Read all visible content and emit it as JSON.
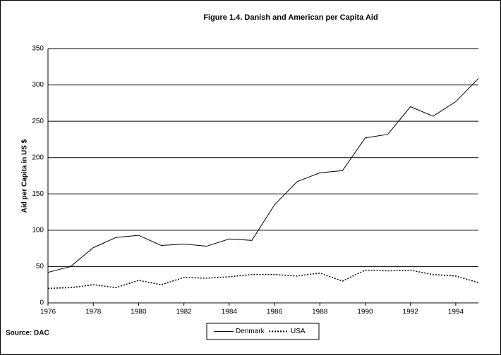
{
  "chart_data": {
    "type": "line",
    "title": "Figure 1.4.  Danish and American per Capita Aid",
    "y_label": "Aid per Capita in US $",
    "source": "Source: DAC",
    "x": [
      1976,
      1977,
      1978,
      1979,
      1980,
      1981,
      1982,
      1983,
      1984,
      1985,
      1986,
      1987,
      1988,
      1989,
      1990,
      1991,
      1992,
      1993,
      1994,
      1995
    ],
    "series": [
      {
        "name": "Denmark",
        "color": "#000000",
        "style": "solid",
        "values": [
          42,
          50,
          76,
          90,
          93,
          79,
          81,
          78,
          88,
          86,
          135,
          167,
          179,
          182,
          227,
          232,
          270,
          257,
          277,
          309
        ]
      },
      {
        "name": "USA",
        "color": "#000000",
        "style": "dotted",
        "values": [
          20,
          21,
          25,
          21,
          31,
          25,
          35,
          34,
          36,
          39,
          39,
          37,
          41,
          30,
          45,
          44,
          45,
          39,
          37,
          28
        ]
      }
    ],
    "xlim": [
      1976,
      1995
    ],
    "xticks": [
      1976,
      1978,
      1980,
      1982,
      1984,
      1986,
      1988,
      1990,
      1992,
      1994
    ],
    "ylim": [
      0,
      350
    ],
    "yticks": [
      0,
      50,
      100,
      150,
      200,
      250,
      300,
      350
    ],
    "grid": true,
    "legend": "bottom"
  }
}
